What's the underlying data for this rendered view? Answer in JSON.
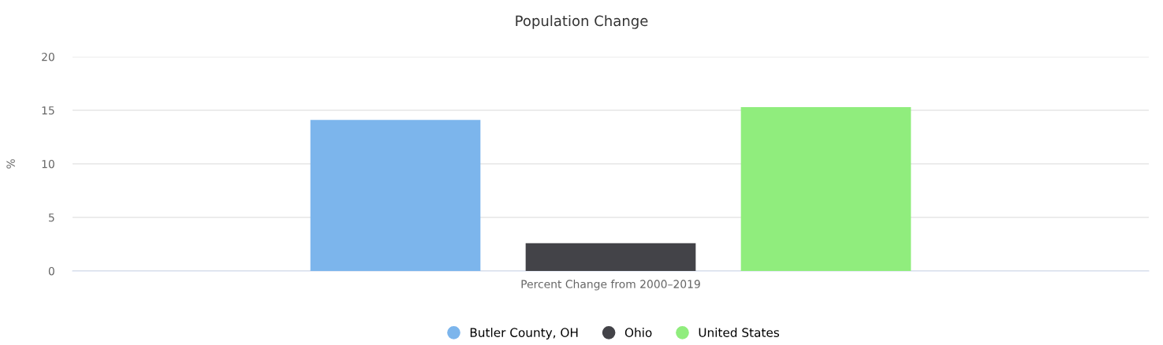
{
  "chart_data": {
    "type": "bar",
    "title": "Population Change",
    "ylabel": "%",
    "categories": [
      "Percent Change from 2000–2019"
    ],
    "series": [
      {
        "name": "Butler County, OH",
        "color": "#7cb5ec",
        "values": [
          14.1
        ]
      },
      {
        "name": "Ohio",
        "color": "#434348",
        "values": [
          2.6
        ]
      },
      {
        "name": "United States",
        "color": "#90ed7d",
        "values": [
          15.3
        ]
      }
    ],
    "ylim": [
      0,
      20
    ],
    "yticks": [
      0,
      5,
      10,
      15,
      20
    ],
    "grid": "y",
    "legend": "bottom"
  }
}
